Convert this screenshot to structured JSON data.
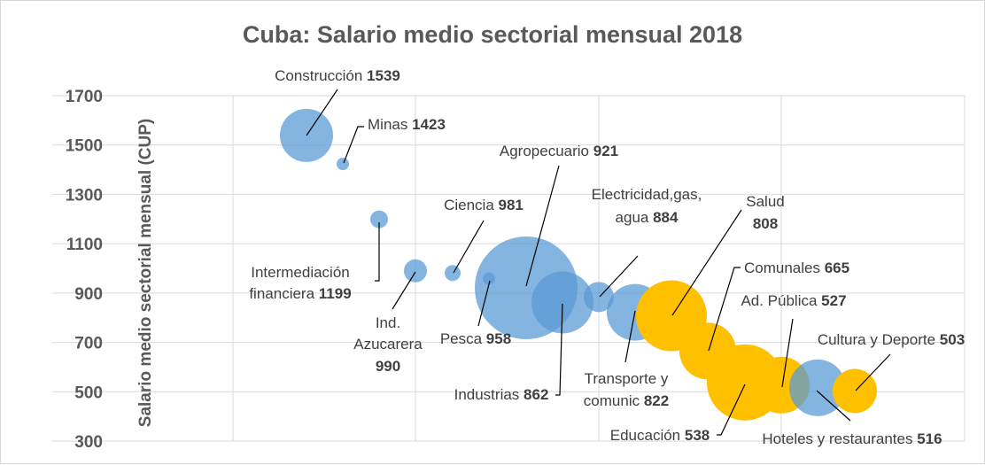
{
  "chart_data": {
    "type": "scatter",
    "subtype": "bubble",
    "title": "Cuba: Salario medio sectorial mensual 2018",
    "xlabel": "",
    "ylabel": "Salario medio sectorial mensual (CUP)",
    "ylim": [
      300,
      1700
    ],
    "yticks": [
      300,
      500,
      700,
      900,
      1100,
      1300,
      1500,
      1700
    ],
    "grid": true,
    "x_tick_labels_shown": false,
    "colors": {
      "blue": "#5B9BD5",
      "gold": "#FFC000"
    },
    "points": [
      {
        "name": "Construcción",
        "value": 1539,
        "x": 1,
        "y": 1539,
        "size": 30,
        "color": "blue",
        "label_lines": [
          {
            "text": "Construcción",
            "value": "1539"
          }
        ]
      },
      {
        "name": "Minas",
        "value": 1423,
        "x": 2,
        "y": 1423,
        "size": 7,
        "color": "blue",
        "label_lines": [
          {
            "text": "Minas",
            "value": "1423"
          }
        ]
      },
      {
        "name": "Intermediación financiera",
        "value": 1199,
        "x": 3,
        "y": 1199,
        "size": 10,
        "color": "blue",
        "label_lines": [
          {
            "text": "Intermediación",
            "value": ""
          },
          {
            "text": "financiera",
            "value": "1199"
          }
        ]
      },
      {
        "name": "Ind. Azucarera",
        "value": 990,
        "x": 4,
        "y": 990,
        "size": 13,
        "color": "blue",
        "label_lines": [
          {
            "text": "Ind.",
            "value": ""
          },
          {
            "text": "Azucarera",
            "value": ""
          },
          {
            "text": "",
            "value": "990"
          }
        ]
      },
      {
        "name": "Ciencia",
        "value": 981,
        "x": 5,
        "y": 981,
        "size": 9,
        "color": "blue",
        "label_lines": [
          {
            "text": "Ciencia",
            "value": "981"
          }
        ]
      },
      {
        "name": "Pesca",
        "value": 958,
        "x": 6,
        "y": 958,
        "size": 7,
        "color": "blue",
        "label_lines": [
          {
            "text": "Pesca",
            "value": "958"
          }
        ]
      },
      {
        "name": "Agropecuario",
        "value": 921,
        "x": 7,
        "y": 921,
        "size": 58,
        "color": "blue",
        "label_lines": [
          {
            "text": "Agropecuario",
            "value": "921"
          }
        ]
      },
      {
        "name": "Industrias",
        "value": 862,
        "x": 8,
        "y": 862,
        "size": 35,
        "color": "blue",
        "label_lines": [
          {
            "text": "Industrias",
            "value": "862"
          }
        ]
      },
      {
        "name": "Electricidad,gas, agua",
        "value": 884,
        "x": 9,
        "y": 884,
        "size": 17,
        "color": "blue",
        "label_lines": [
          {
            "text": "Electricidad,gas,",
            "value": ""
          },
          {
            "text": "agua",
            "value": "884"
          }
        ]
      },
      {
        "name": "Transporte y comunic",
        "value": 822,
        "x": 10,
        "y": 822,
        "size": 32,
        "color": "blue",
        "label_lines": [
          {
            "text": "Transporte y",
            "value": ""
          },
          {
            "text": "comunic",
            "value": "822"
          }
        ]
      },
      {
        "name": "Salud",
        "value": 808,
        "x": 11,
        "y": 808,
        "size": 40,
        "color": "gold",
        "label_lines": [
          {
            "text": "Salud",
            "value": ""
          },
          {
            "text": "",
            "value": "808"
          }
        ]
      },
      {
        "name": "Comunales",
        "value": 665,
        "x": 12,
        "y": 665,
        "size": 32,
        "color": "gold",
        "label_lines": [
          {
            "text": "Comunales",
            "value": "665"
          }
        ]
      },
      {
        "name": "Educación",
        "value": 538,
        "x": 13,
        "y": 538,
        "size": 43,
        "color": "gold",
        "label_lines": [
          {
            "text": "Educación",
            "value": "538"
          }
        ]
      },
      {
        "name": "Ad. Pública",
        "value": 527,
        "x": 14,
        "y": 527,
        "size": 32,
        "color": "gold",
        "label_lines": [
          {
            "text": "Ad. Pública",
            "value": "527"
          }
        ]
      },
      {
        "name": "Hoteles y restaurantes",
        "value": 516,
        "x": 15,
        "y": 516,
        "size": 32,
        "color": "blue",
        "label_lines": [
          {
            "text": "Hoteles y restaurantes",
            "value": "516"
          }
        ]
      },
      {
        "name": "Cultura y Deporte",
        "value": 503,
        "x": 16,
        "y": 503,
        "size": 25,
        "color": "gold",
        "label_lines": [
          {
            "text": "Cultura y Deporte",
            "value": "503"
          }
        ]
      }
    ]
  }
}
